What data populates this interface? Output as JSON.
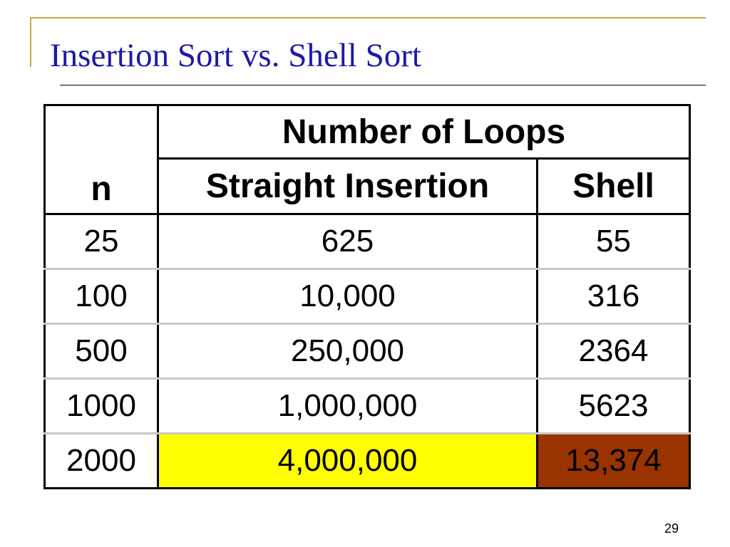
{
  "slide": {
    "title": "Insertion Sort vs. Shell Sort",
    "page_number": "29"
  },
  "table": {
    "n_header": "n",
    "group_header": "Number of Loops",
    "columns": [
      "Straight Insertion",
      "Shell"
    ],
    "rows": [
      {
        "n": "25",
        "insertion": "625",
        "shell": "55"
      },
      {
        "n": "100",
        "insertion": "10,000",
        "shell": "316"
      },
      {
        "n": "500",
        "insertion": "250,000",
        "shell": "2364"
      },
      {
        "n": "1000",
        "insertion": "1,000,000",
        "shell": "5623"
      },
      {
        "n": "2000",
        "insertion": "4,000,000",
        "shell": "13,374"
      }
    ],
    "highlight_colors": {
      "insertion_last": "#ffff00",
      "shell_last": "#993300"
    }
  },
  "theme": {
    "title_color": "#1a1aa8",
    "accent_color": "#c8a84c"
  }
}
